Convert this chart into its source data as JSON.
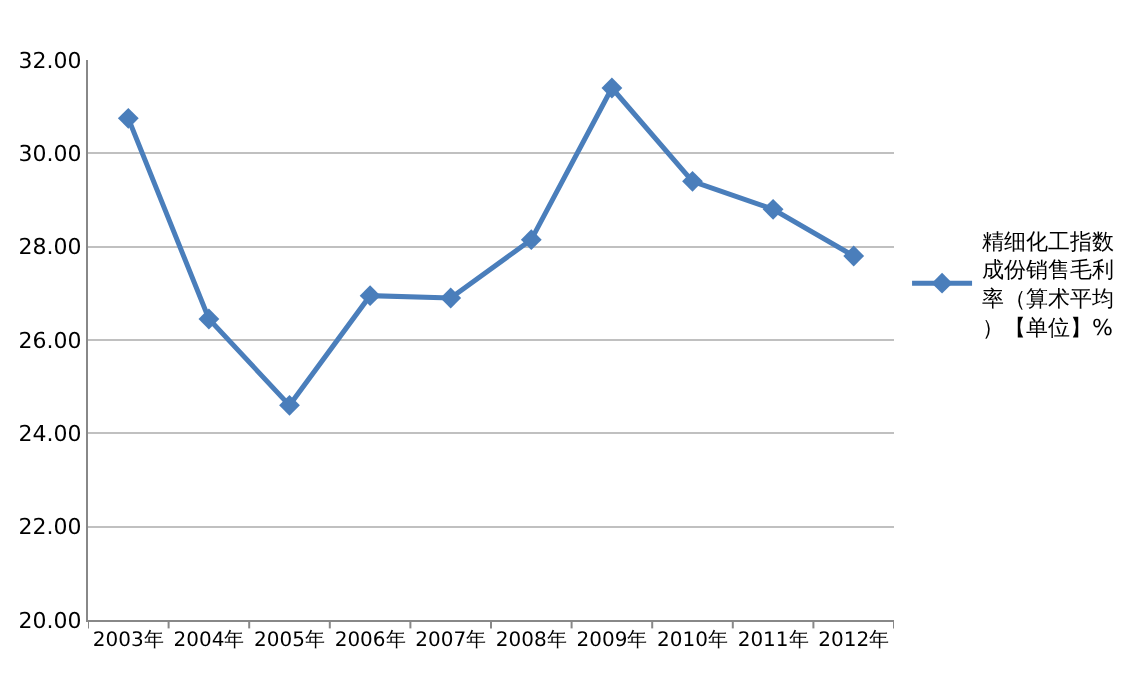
{
  "chart_data": {
    "type": "line",
    "categories": [
      "2003年",
      "2004年",
      "2005年",
      "2006年",
      "2007年",
      "2008年",
      "2009年",
      "2010年",
      "2011年",
      "2012年"
    ],
    "series": [
      {
        "name": "精细化工指数成份销售毛利率（算术平均）【单位】%",
        "color": "#4a7ebb",
        "values": [
          30.75,
          26.45,
          24.6,
          26.95,
          26.9,
          28.15,
          31.4,
          29.4,
          28.8,
          27.8
        ]
      }
    ],
    "ylim": [
      20,
      32
    ],
    "yticks": [
      {
        "value": 20,
        "label": "20.00"
      },
      {
        "value": 22,
        "label": "22.00"
      },
      {
        "value": 24,
        "label": "24.00"
      },
      {
        "value": 26,
        "label": "26.00"
      },
      {
        "value": 28,
        "label": "28.00"
      },
      {
        "value": 30,
        "label": "30.00"
      },
      {
        "value": 32,
        "label": "32.00"
      }
    ],
    "grid": "y",
    "legend": "right",
    "marker": "diamond",
    "line_style": "solid"
  }
}
